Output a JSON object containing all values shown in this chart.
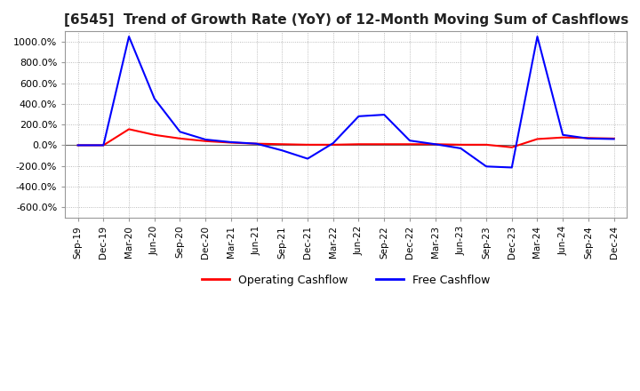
{
  "title": "[6545]  Trend of Growth Rate (YoY) of 12-Month Moving Sum of Cashflows",
  "title_fontsize": 11,
  "ylim": [
    -700,
    1100
  ],
  "yticks": [
    -600,
    -400,
    -200,
    0,
    200,
    400,
    600,
    800,
    1000
  ],
  "grid_color": "#aaaaaa",
  "background_color": "#ffffff",
  "plot_bg_color": "#ffffff",
  "operating_color": "#ff0000",
  "free_color": "#0000ff",
  "x_labels": [
    "Sep-19",
    "Dec-19",
    "Mar-20",
    "Jun-20",
    "Sep-20",
    "Dec-20",
    "Mar-21",
    "Jun-21",
    "Sep-21",
    "Dec-21",
    "Mar-22",
    "Jun-22",
    "Sep-22",
    "Dec-22",
    "Mar-23",
    "Jun-23",
    "Sep-23",
    "Dec-23",
    "Mar-24",
    "Jun-24",
    "Sep-24",
    "Dec-24"
  ],
  "operating_cashflow": [
    0,
    0,
    155,
    100,
    65,
    40,
    25,
    15,
    10,
    5,
    5,
    10,
    10,
    10,
    10,
    5,
    5,
    -20,
    60,
    75,
    70,
    65
  ],
  "free_cashflow": [
    0,
    0,
    1050,
    450,
    130,
    55,
    30,
    15,
    -50,
    -130,
    20,
    280,
    295,
    45,
    10,
    -30,
    -205,
    -215,
    1050,
    100,
    65,
    60
  ]
}
